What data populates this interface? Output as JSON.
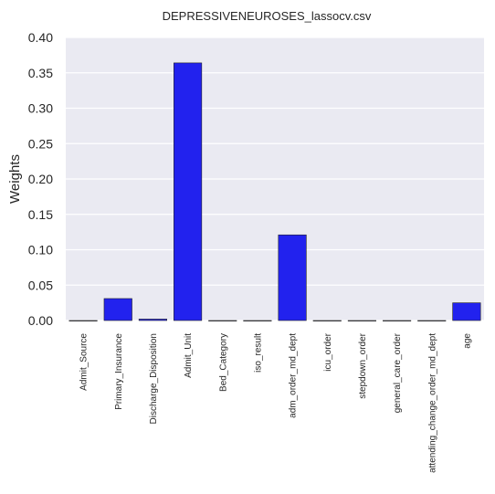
{
  "chart_data": {
    "type": "bar",
    "title": "DEPRESSIVENEUROSES_lassocv.csv",
    "xlabel": "",
    "ylabel": "Weights",
    "ylim": [
      0,
      0.4
    ],
    "yticks": [
      "0.00",
      "0.05",
      "0.10",
      "0.15",
      "0.20",
      "0.25",
      "0.30",
      "0.35",
      "0.40"
    ],
    "categories": [
      "Admit_Source",
      "Primary_Insurance",
      "Discharge_Disposition",
      "Admit_Unit",
      "Bed_Category",
      "iso_result",
      "adm_order_md_dept",
      "icu_order",
      "stepdown_order",
      "general_care_order",
      "attending_change_order_md_dept",
      "age"
    ],
    "values": [
      0.0,
      0.031,
      0.002,
      0.364,
      0.0,
      0.0,
      0.121,
      0.0,
      0.0,
      0.0,
      0.0,
      0.025
    ],
    "bar_color": "#2222ee",
    "plot_background": "#eaeaf2",
    "grid": true
  }
}
